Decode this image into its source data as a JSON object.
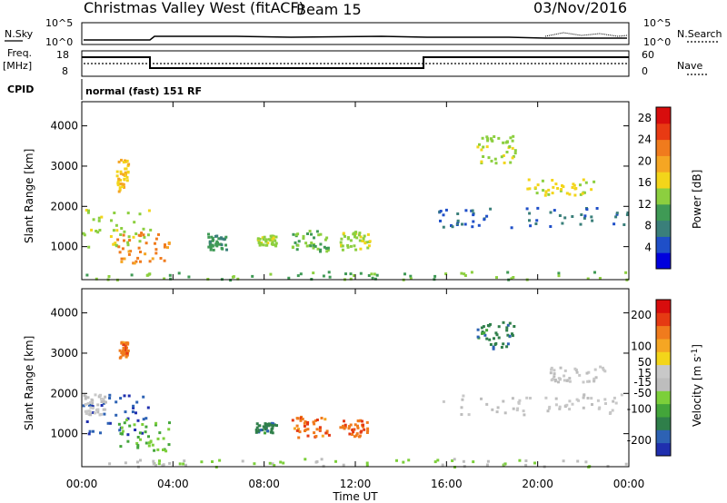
{
  "header": {
    "title": "Christmas Valley West (fitACF)",
    "beam": "Beam 15",
    "date": "03/Nov/2016"
  },
  "panels": {
    "nsky_label": "N.Sky",
    "nsky_ticks": [
      "10^5",
      "10^0"
    ],
    "nsearch_label": "N.Search",
    "nsearch_ticks": [
      "10^5",
      "10^0"
    ],
    "freq_label": "Freq.",
    "freq_unit": "[MHz]",
    "freq_ticks": [
      "18",
      "8"
    ],
    "nave_label": "Nave",
    "nave_ticks": [
      "60",
      "0"
    ],
    "cpid_label": "CPID",
    "cpid_text": "normal (fast) 151 RF"
  },
  "chart_data": [
    {
      "type": "heatmap",
      "name": "power",
      "ylabel": "Slant Range [km]",
      "xlabel": "Time UT",
      "xlim": [
        0,
        24
      ],
      "ylim": [
        180,
        4600
      ],
      "xticks": [
        "00:00",
        "04:00",
        "08:00",
        "12:00",
        "16:00",
        "20:00",
        "00:00"
      ],
      "yticks": [
        1000,
        2000,
        3000,
        4000
      ],
      "colorbar": {
        "label": "Power [dB]",
        "ticks": [
          4,
          8,
          12,
          16,
          20,
          24,
          28
        ],
        "range": [
          0,
          30
        ],
        "colors": [
          "#0000dd",
          "#1f4fc8",
          "#3a7f7a",
          "#3f9a55",
          "#8ccf3f",
          "#f3d51a",
          "#f5a623",
          "#f07b1d",
          "#e83a13",
          "#d80d0d"
        ]
      },
      "regions": [
        {
          "t": [
            0.0,
            3.0
          ],
          "r": [
            1000,
            2000
          ],
          "value": 14
        },
        {
          "t": [
            1.5,
            3.8
          ],
          "r": [
            600,
            1400
          ],
          "value": 22
        },
        {
          "t": [
            1.5,
            2.0
          ],
          "r": [
            2400,
            3200
          ],
          "value": 18
        },
        {
          "t": [
            5.5,
            6.3
          ],
          "r": [
            950,
            1350
          ],
          "value": 10
        },
        {
          "t": [
            7.6,
            8.5
          ],
          "r": [
            1050,
            1300
          ],
          "value": 14
        },
        {
          "t": [
            9.2,
            10.8
          ],
          "r": [
            900,
            1450
          ],
          "value": 12
        },
        {
          "t": [
            11.3,
            12.6
          ],
          "r": [
            950,
            1400
          ],
          "value": 14
        },
        {
          "t": [
            17.3,
            19.0
          ],
          "r": [
            3100,
            3800
          ],
          "value": 14
        },
        {
          "t": [
            15.5,
            24.0
          ],
          "r": [
            1500,
            2000
          ],
          "value": 6
        },
        {
          "t": [
            19.5,
            22.5
          ],
          "r": [
            2300,
            2700
          ],
          "value": 16
        },
        {
          "t": [
            0.0,
            24.0
          ],
          "r": [
            200,
            400
          ],
          "value": 12
        }
      ]
    },
    {
      "type": "heatmap",
      "name": "velocity",
      "ylabel": "Slant Range [km]",
      "xlabel": "Time UT",
      "xlim": [
        0,
        24
      ],
      "ylim": [
        180,
        4600
      ],
      "xticks": [
        "00:00",
        "04:00",
        "08:00",
        "12:00",
        "16:00",
        "20:00",
        "00:00"
      ],
      "yticks": [
        1000,
        2000,
        3000,
        4000
      ],
      "colorbar": {
        "label": "Velocity [m s^-1]",
        "ticks": [
          200,
          100,
          50,
          15,
          -15,
          -50,
          -100,
          -200
        ],
        "range": [
          -250,
          250
        ],
        "colors": [
          "#1f2fae",
          "#2d62b4",
          "#2f7f4a",
          "#43a53a",
          "#7ccf3a",
          "#bdbdbd",
          "#c8c8c8",
          "#f3d51a",
          "#f5a623",
          "#f07b1d",
          "#e53a13",
          "#d80d0d"
        ]
      },
      "regions": [
        {
          "t": [
            0.0,
            3.0
          ],
          "r": [
            1000,
            2000
          ],
          "value": -200
        },
        {
          "t": [
            1.5,
            3.8
          ],
          "r": [
            600,
            1400
          ],
          "value": -80
        },
        {
          "t": [
            0.0,
            1.0
          ],
          "r": [
            1500,
            2000
          ],
          "value": 0
        },
        {
          "t": [
            1.6,
            2.0
          ],
          "r": [
            2900,
            3300
          ],
          "value": 150
        },
        {
          "t": [
            7.6,
            8.5
          ],
          "r": [
            1050,
            1300
          ],
          "value": -150
        },
        {
          "t": [
            9.2,
            10.8
          ],
          "r": [
            900,
            1450
          ],
          "value": 150
        },
        {
          "t": [
            11.3,
            12.6
          ],
          "r": [
            950,
            1400
          ],
          "value": 150
        },
        {
          "t": [
            17.3,
            19.0
          ],
          "r": [
            3100,
            3800
          ],
          "value": -150
        },
        {
          "t": [
            15.5,
            24.0
          ],
          "r": [
            1500,
            2000
          ],
          "value": 0
        },
        {
          "t": [
            20.5,
            23.0
          ],
          "r": [
            2300,
            2700
          ],
          "value": 0
        },
        {
          "t": [
            0.0,
            24.0
          ],
          "r": [
            200,
            400
          ],
          "value": -40
        }
      ]
    }
  ]
}
